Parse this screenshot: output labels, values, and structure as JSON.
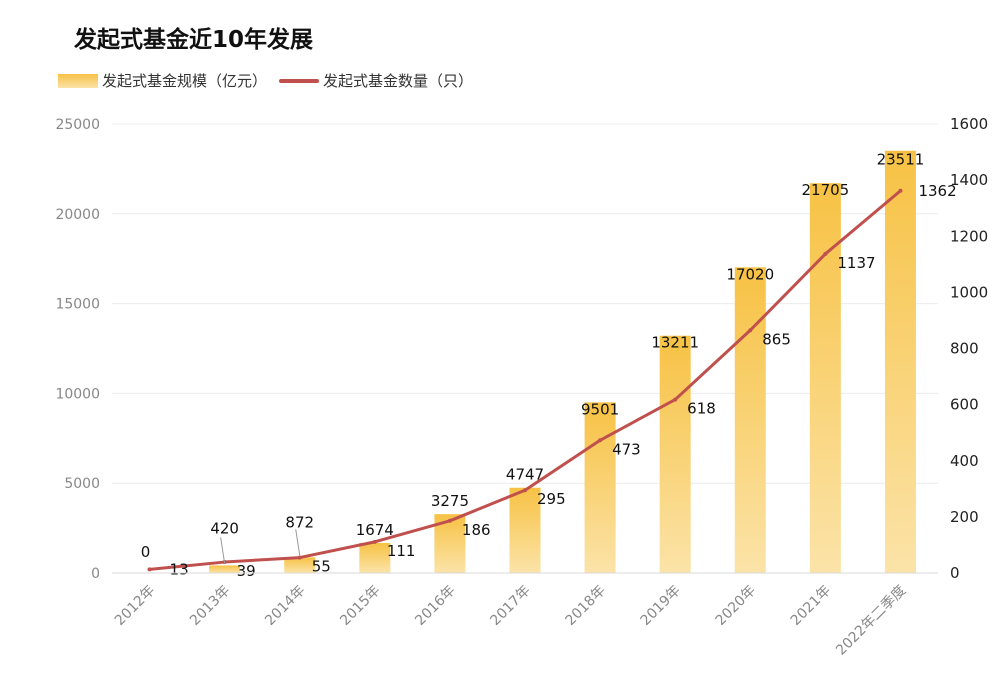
{
  "chart_data": {
    "type": "bar",
    "title": "发起式基金近10年发展",
    "categories": [
      "2012年",
      "2013年",
      "2014年",
      "2015年",
      "2016年",
      "2017年",
      "2018年",
      "2019年",
      "2020年",
      "2021年",
      "2022年二季度"
    ],
    "series": [
      {
        "name": "发起式基金规模（亿元）",
        "type": "bar",
        "axis": "left",
        "values": [
          0,
          420,
          872,
          1674,
          3275,
          4747,
          9501,
          13211,
          17020,
          21705,
          23511
        ]
      },
      {
        "name": "发起式基金数量（只）",
        "type": "line",
        "axis": "right",
        "values": [
          13,
          39,
          55,
          111,
          186,
          295,
          473,
          618,
          865,
          1137,
          1362
        ]
      }
    ],
    "y_left": {
      "ylim": [
        0,
        25000
      ],
      "ticks": [
        "0",
        "5000",
        "10000",
        "15000",
        "20000",
        "25000"
      ]
    },
    "y_right": {
      "ylim": [
        0,
        1600
      ],
      "ticks": [
        "0",
        "200",
        "400",
        "600",
        "800",
        "1000",
        "1200",
        "1400",
        "1600"
      ]
    },
    "grid": true,
    "legend_position": "top-left",
    "colors": {
      "bar_top": "#f7c244",
      "bar_bottom": "#fbe3a8",
      "line": "#c0504d"
    }
  }
}
